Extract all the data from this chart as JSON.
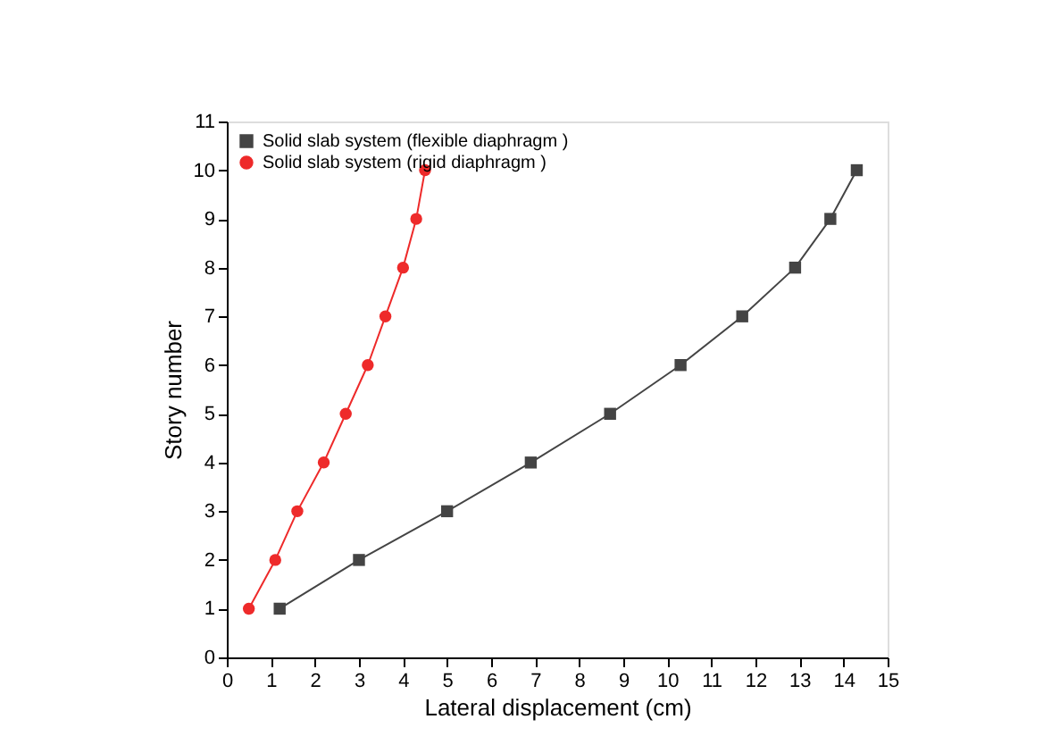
{
  "chart_data": {
    "type": "line",
    "xlabel": "Lateral displacement (cm)",
    "ylabel": "Story number",
    "xlim": [
      0,
      15
    ],
    "xticks": [
      0,
      1,
      2,
      3,
      4,
      5,
      6,
      7,
      8,
      9,
      10,
      11,
      12,
      13,
      14,
      15
    ],
    "ylim": [
      0,
      11
    ],
    "yticks": [
      0,
      1,
      2,
      3,
      4,
      5,
      6,
      7,
      8,
      9,
      10,
      11
    ],
    "grid": false,
    "legend": "top left",
    "line_style": "solid",
    "series": [
      {
        "name": "Solid slab system (flexible diaphragm )",
        "color": "#444444",
        "marker": "square",
        "x": [
          1.2,
          3.0,
          5.0,
          6.9,
          8.7,
          10.3,
          11.7,
          12.9,
          13.7,
          14.3
        ],
        "values": [
          1,
          2,
          3,
          4,
          5,
          6,
          7,
          8,
          9,
          10
        ]
      },
      {
        "name": "Solid slab system (rigid diaphragm )",
        "color": "#ee2a2a",
        "marker": "circle",
        "x": [
          0.5,
          1.1,
          1.6,
          2.2,
          2.7,
          3.2,
          3.6,
          4.0,
          4.3,
          4.5
        ],
        "values": [
          1,
          2,
          3,
          4,
          5,
          6,
          7,
          8,
          9,
          10
        ]
      }
    ]
  }
}
